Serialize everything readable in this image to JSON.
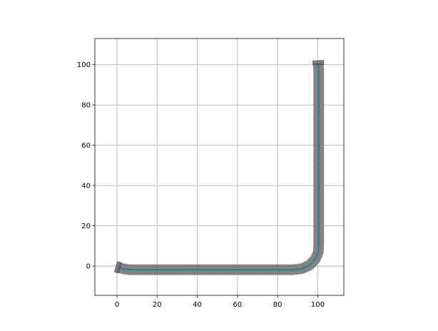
{
  "chart_data": {
    "type": "line",
    "title": "",
    "xlabel": "",
    "ylabel": "",
    "xlim": [
      -11,
      113
    ],
    "ylim": [
      -14.5,
      113
    ],
    "grid": true,
    "aspect": "equal",
    "xticks": [
      0,
      20,
      40,
      60,
      80,
      100
    ],
    "yticks": [
      0,
      20,
      40,
      60,
      80,
      100
    ],
    "xtick_labels": [
      "0",
      "20",
      "40",
      "60",
      "80",
      "100"
    ],
    "ytick_labels": [
      "0",
      "20",
      "40",
      "60",
      "80",
      "100"
    ],
    "path": {
      "x": [
        0.5,
        3,
        6,
        10,
        30,
        50,
        70,
        88,
        92,
        96,
        98.8,
        100.3,
        100.5,
        100.5,
        100.5,
        100.5,
        100.5,
        100.3
      ],
      "y": [
        -0.6,
        -1.3,
        -1.8,
        -1.8,
        -1.8,
        -1.8,
        -1.8,
        -1.8,
        -1.3,
        0.5,
        3.5,
        7,
        12,
        40,
        70,
        90,
        97,
        101
      ]
    },
    "band_color": "#808080",
    "band_alpha": 0.8,
    "centerline_color": "#1a8c8c",
    "endcap_color": "#666666"
  }
}
